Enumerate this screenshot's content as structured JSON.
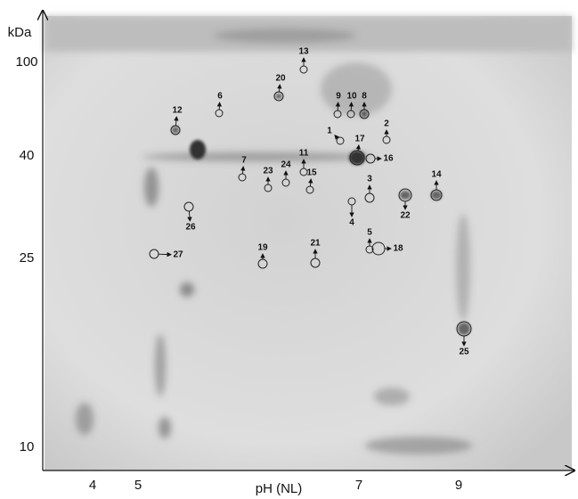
{
  "axes": {
    "y_title": "kDa",
    "y_ticks": [
      "100",
      "40",
      "25",
      "10"
    ],
    "x_title": "pH (NL)",
    "x_ticks": [
      "4",
      "5",
      "7",
      "9"
    ]
  },
  "spots": [
    {
      "label": "13"
    },
    {
      "label": "20"
    },
    {
      "label": "6"
    },
    {
      "label": "9"
    },
    {
      "label": "10"
    },
    {
      "label": "8"
    },
    {
      "label": "12"
    },
    {
      "label": "2"
    },
    {
      "label": "1"
    },
    {
      "label": "17"
    },
    {
      "label": "16"
    },
    {
      "label": "7"
    },
    {
      "label": "23"
    },
    {
      "label": "24"
    },
    {
      "label": "11"
    },
    {
      "label": "15"
    },
    {
      "label": "3"
    },
    {
      "label": "14"
    },
    {
      "label": "22"
    },
    {
      "label": "4"
    },
    {
      "label": "26"
    },
    {
      "label": "27"
    },
    {
      "label": "5"
    },
    {
      "label": "18"
    },
    {
      "label": "19"
    },
    {
      "label": "21"
    },
    {
      "label": "25"
    }
  ]
}
